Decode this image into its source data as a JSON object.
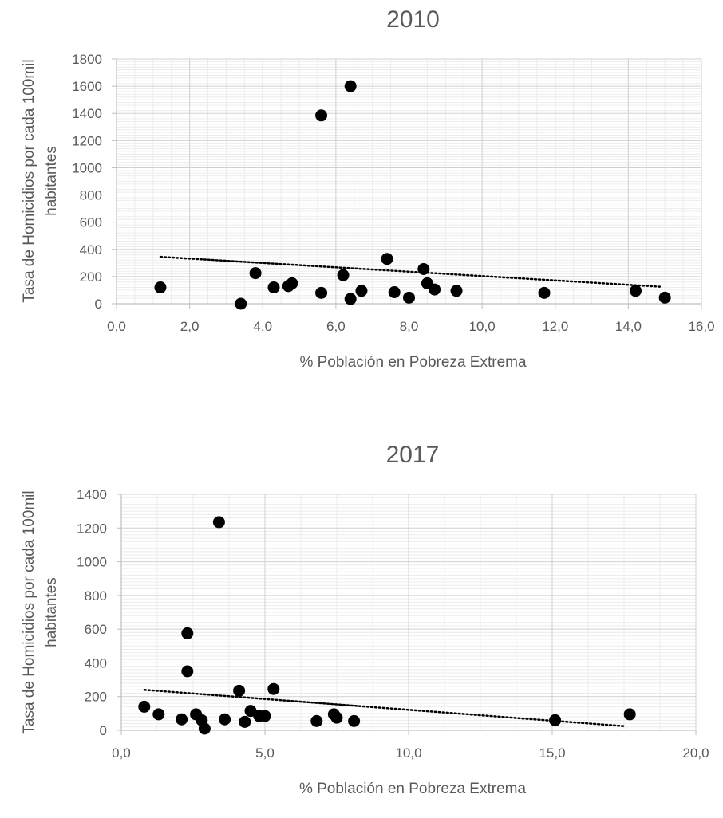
{
  "chart_data": [
    {
      "type": "scatter",
      "title": "2010",
      "xlabel": "% Población en Pobreza Extrema",
      "ylabel": "Tasa de Homicidios por cada 100mil habitantes",
      "ylabel_lines": [
        "Tasa de Homicidios por cada 100mil",
        "habitantes"
      ],
      "xlim": [
        0,
        16
      ],
      "ylim": [
        0,
        1800
      ],
      "x_ticks": [
        "0,0",
        "2,0",
        "4,0",
        "6,0",
        "8,0",
        "10,0",
        "12,0",
        "14,0",
        "16,0"
      ],
      "y_ticks": [
        "0",
        "200",
        "400",
        "600",
        "800",
        "1000",
        "1200",
        "1400",
        "1600",
        "1800"
      ],
      "grid": true,
      "series": [
        {
          "points": [
            {
              "x": 1.2,
              "y": 120
            },
            {
              "x": 3.4,
              "y": 0
            },
            {
              "x": 3.8,
              "y": 225
            },
            {
              "x": 4.3,
              "y": 120
            },
            {
              "x": 4.7,
              "y": 130
            },
            {
              "x": 4.8,
              "y": 150
            },
            {
              "x": 5.6,
              "y": 80
            },
            {
              "x": 5.6,
              "y": 1385
            },
            {
              "x": 6.2,
              "y": 210
            },
            {
              "x": 6.4,
              "y": 35
            },
            {
              "x": 6.4,
              "y": 1600
            },
            {
              "x": 6.7,
              "y": 95
            },
            {
              "x": 7.4,
              "y": 330
            },
            {
              "x": 7.6,
              "y": 85
            },
            {
              "x": 8.0,
              "y": 45
            },
            {
              "x": 8.4,
              "y": 255
            },
            {
              "x": 8.5,
              "y": 150
            },
            {
              "x": 8.7,
              "y": 105
            },
            {
              "x": 9.3,
              "y": 95
            },
            {
              "x": 11.7,
              "y": 80
            },
            {
              "x": 14.2,
              "y": 95
            },
            {
              "x": 15.0,
              "y": 45
            }
          ]
        }
      ],
      "trendline": {
        "x": [
          1.2,
          14.9
        ],
        "y": [
          345,
          125
        ],
        "style": "dotted"
      }
    },
    {
      "type": "scatter",
      "title": "2017",
      "xlabel": "% Población en Pobreza Extrema",
      "ylabel": "Tasa de Homicidios por cada 100mil habitantes",
      "ylabel_lines": [
        "Tasa de Homicidios por cada 100mil",
        "habitantes"
      ],
      "xlim": [
        0,
        20
      ],
      "ylim": [
        0,
        1400
      ],
      "x_ticks": [
        "0,0",
        "5,0",
        "10,0",
        "15,0",
        "20,0"
      ],
      "y_ticks": [
        "0",
        "200",
        "400",
        "600",
        "800",
        "1000",
        "1200",
        "1400"
      ],
      "grid": true,
      "series": [
        {
          "points": [
            {
              "x": 0.8,
              "y": 140
            },
            {
              "x": 1.3,
              "y": 95
            },
            {
              "x": 2.1,
              "y": 65
            },
            {
              "x": 2.3,
              "y": 575
            },
            {
              "x": 2.3,
              "y": 350
            },
            {
              "x": 2.6,
              "y": 95
            },
            {
              "x": 2.8,
              "y": 60
            },
            {
              "x": 2.9,
              "y": 10
            },
            {
              "x": 3.4,
              "y": 1235
            },
            {
              "x": 3.6,
              "y": 65
            },
            {
              "x": 4.1,
              "y": 235
            },
            {
              "x": 4.3,
              "y": 50
            },
            {
              "x": 4.5,
              "y": 115
            },
            {
              "x": 4.8,
              "y": 85
            },
            {
              "x": 5.0,
              "y": 85
            },
            {
              "x": 5.3,
              "y": 245
            },
            {
              "x": 6.8,
              "y": 55
            },
            {
              "x": 7.4,
              "y": 95
            },
            {
              "x": 7.5,
              "y": 75
            },
            {
              "x": 8.1,
              "y": 55
            },
            {
              "x": 15.1,
              "y": 60
            },
            {
              "x": 17.7,
              "y": 95
            }
          ]
        }
      ],
      "trendline": {
        "x": [
          0.8,
          17.5
        ],
        "y": [
          240,
          25
        ],
        "style": "dotted"
      }
    }
  ]
}
